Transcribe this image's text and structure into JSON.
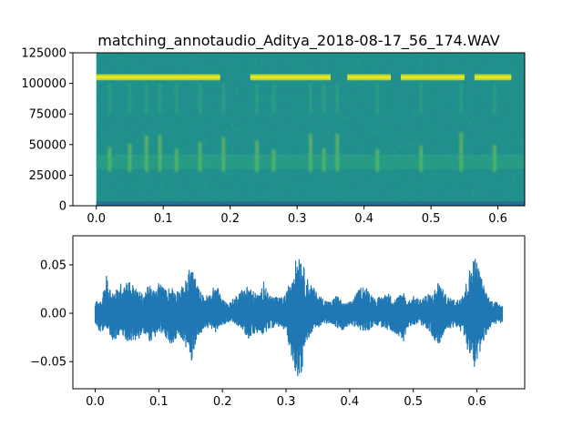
{
  "chart_data": [
    {
      "type": "heatmap",
      "title": "matching_annotaudio_Aditya_2018-08-17_56_174.WAV",
      "xlabel": "",
      "ylabel": "",
      "xlim": [
        -0.035,
        0.64
      ],
      "ylim": [
        0,
        125000
      ],
      "data_extent_x": [
        0.0,
        0.64
      ],
      "x_ticks": [
        0.0,
        0.1,
        0.2,
        0.3,
        0.4,
        0.5,
        0.6
      ],
      "x_tick_labels": [
        "0.0",
        "0.1",
        "0.2",
        "0.3",
        "0.4",
        "0.5",
        "0.6"
      ],
      "y_ticks": [
        0,
        25000,
        50000,
        75000,
        100000,
        125000
      ],
      "y_tick_labels": [
        "0",
        "25000",
        "50000",
        "75000",
        "100000",
        "125000"
      ],
      "colormap": "viridis",
      "background_color": "#21908c",
      "low_band_color": "#2a6f8e",
      "bright_band_freq": 105000,
      "bright_band_segments": [
        [
          0.0,
          0.185
        ],
        [
          0.23,
          0.35
        ],
        [
          0.375,
          0.44
        ],
        [
          0.455,
          0.55
        ],
        [
          0.565,
          0.62
        ]
      ],
      "vertical_streak_times": [
        0.02,
        0.05,
        0.075,
        0.095,
        0.12,
        0.155,
        0.19,
        0.24,
        0.265,
        0.32,
        0.34,
        0.36,
        0.42,
        0.485,
        0.545,
        0.595
      ]
    },
    {
      "type": "line",
      "title": "",
      "xlabel": "",
      "ylabel": "",
      "xlim": [
        -0.035,
        0.675
      ],
      "ylim": [
        -0.078,
        0.08
      ],
      "x_ticks": [
        0.0,
        0.1,
        0.2,
        0.3,
        0.4,
        0.5,
        0.6
      ],
      "x_tick_labels": [
        "0.0",
        "0.1",
        "0.2",
        "0.3",
        "0.4",
        "0.5",
        "0.6"
      ],
      "y_ticks": [
        0.05,
        0.0,
        -0.05
      ],
      "y_tick_labels": [
        "0.05",
        "0.00",
        "−0.05"
      ],
      "line_color": "#1f77b4",
      "duration": 0.64,
      "envelope": {
        "t": [
          0.0,
          0.01,
          0.018,
          0.022,
          0.03,
          0.04,
          0.05,
          0.055,
          0.065,
          0.075,
          0.085,
          0.095,
          0.1,
          0.11,
          0.12,
          0.13,
          0.14,
          0.15,
          0.155,
          0.16,
          0.17,
          0.18,
          0.19,
          0.2,
          0.21,
          0.22,
          0.23,
          0.24,
          0.25,
          0.26,
          0.265,
          0.27,
          0.28,
          0.29,
          0.3,
          0.31,
          0.32,
          0.325,
          0.33,
          0.34,
          0.35,
          0.36,
          0.37,
          0.38,
          0.39,
          0.4,
          0.41,
          0.42,
          0.43,
          0.44,
          0.45,
          0.46,
          0.47,
          0.48,
          0.485,
          0.49,
          0.5,
          0.51,
          0.52,
          0.53,
          0.54,
          0.55,
          0.56,
          0.57,
          0.58,
          0.59,
          0.595,
          0.6,
          0.61,
          0.62,
          0.63,
          0.64
        ],
        "upper": [
          0.013,
          0.012,
          0.041,
          0.028,
          0.022,
          0.031,
          0.035,
          0.034,
          0.025,
          0.02,
          0.03,
          0.022,
          0.034,
          0.025,
          0.028,
          0.024,
          0.03,
          0.05,
          0.045,
          0.03,
          0.018,
          0.02,
          0.032,
          0.015,
          0.01,
          0.018,
          0.025,
          0.03,
          0.022,
          0.02,
          0.038,
          0.022,
          0.018,
          0.016,
          0.02,
          0.045,
          0.065,
          0.06,
          0.04,
          0.03,
          0.02,
          0.015,
          0.012,
          0.02,
          0.01,
          0.012,
          0.02,
          0.03,
          0.025,
          0.015,
          0.018,
          0.022,
          0.015,
          0.02,
          0.023,
          0.012,
          0.018,
          0.015,
          0.02,
          0.02,
          0.035,
          0.02,
          0.015,
          0.015,
          0.025,
          0.05,
          0.061,
          0.055,
          0.03,
          0.015,
          0.012,
          0.01
        ],
        "lower": [
          -0.015,
          -0.02,
          -0.018,
          -0.025,
          -0.03,
          -0.022,
          -0.03,
          -0.028,
          -0.032,
          -0.02,
          -0.03,
          -0.025,
          -0.02,
          -0.025,
          -0.035,
          -0.022,
          -0.03,
          -0.055,
          -0.04,
          -0.025,
          -0.018,
          -0.015,
          -0.02,
          -0.012,
          -0.01,
          -0.012,
          -0.015,
          -0.028,
          -0.022,
          -0.02,
          -0.025,
          -0.018,
          -0.015,
          -0.014,
          -0.02,
          -0.05,
          -0.07,
          -0.06,
          -0.035,
          -0.02,
          -0.015,
          -0.012,
          -0.01,
          -0.015,
          -0.02,
          -0.012,
          -0.015,
          -0.02,
          -0.018,
          -0.012,
          -0.015,
          -0.018,
          -0.02,
          -0.025,
          -0.03,
          -0.015,
          -0.012,
          -0.012,
          -0.015,
          -0.025,
          -0.035,
          -0.02,
          -0.015,
          -0.015,
          -0.025,
          -0.05,
          -0.063,
          -0.055,
          -0.03,
          -0.015,
          -0.012,
          -0.01
        ]
      }
    }
  ]
}
